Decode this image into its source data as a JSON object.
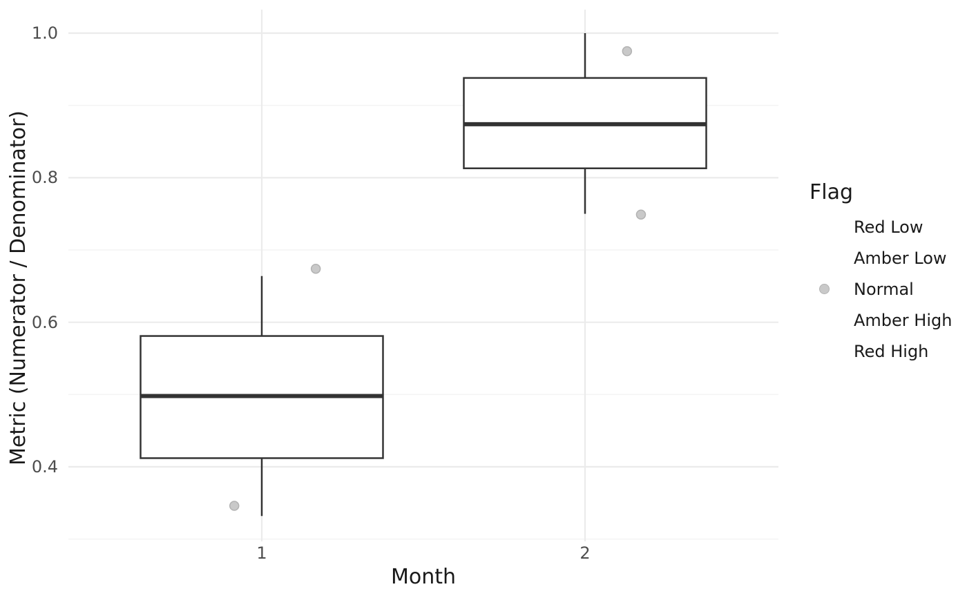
{
  "chart_data": {
    "type": "boxplot",
    "title": "",
    "xlabel": "Month",
    "ylabel": "Metric (Numerator / Denominator)",
    "legend_position": "right",
    "grid": true,
    "x_axis": {
      "range": [
        0.4,
        2.6
      ],
      "ticks": [
        {
          "value": 1,
          "label": "1"
        },
        {
          "value": 2,
          "label": "2"
        }
      ]
    },
    "y_axis": {
      "range": [
        0.297,
        1.032
      ],
      "ticks": [
        {
          "value": 0.4,
          "label": "0.4"
        },
        {
          "value": 0.6,
          "label": "0.6"
        },
        {
          "value": 0.8,
          "label": "0.8"
        },
        {
          "value": 1.0,
          "label": "1.0"
        }
      ],
      "minor_ticks": [
        0.3,
        0.5,
        0.7,
        0.9
      ]
    },
    "box_width": 0.75,
    "boxes": [
      {
        "x": 1,
        "whisker_low": 0.332,
        "q1": 0.412,
        "median": 0.498,
        "q3": 0.581,
        "whisker_high": 0.664
      },
      {
        "x": 2,
        "whisker_low": 0.75,
        "q1": 0.813,
        "median": 0.874,
        "q3": 0.938,
        "whisker_high": 1.0
      }
    ],
    "points": [
      {
        "x": 0.915,
        "y": 0.346,
        "flag": "Normal"
      },
      {
        "x": 1.167,
        "y": 0.674,
        "flag": "Normal"
      },
      {
        "x": 2.13,
        "y": 0.975,
        "flag": "Normal"
      },
      {
        "x": 2.173,
        "y": 0.749,
        "flag": "Normal"
      }
    ]
  },
  "legend": {
    "title": "Flag",
    "items": [
      {
        "label": "Red Low",
        "key": "none"
      },
      {
        "label": "Amber Low",
        "key": "none"
      },
      {
        "label": "Normal",
        "key": "point"
      },
      {
        "label": "Amber High",
        "key": "none"
      },
      {
        "label": "Red High",
        "key": "none"
      }
    ]
  },
  "colors": {
    "background": "#FFFFFF",
    "box_stroke": "#333333",
    "median_stroke": "#333333",
    "grid_major": "#EBEBEB",
    "grid_minor": "#F4F4F4",
    "point_fill": "#C9C9C9",
    "point_stroke": "#B2B2B2",
    "tick_text": "#4D4D4D",
    "title_text": "#1A1A1A"
  }
}
